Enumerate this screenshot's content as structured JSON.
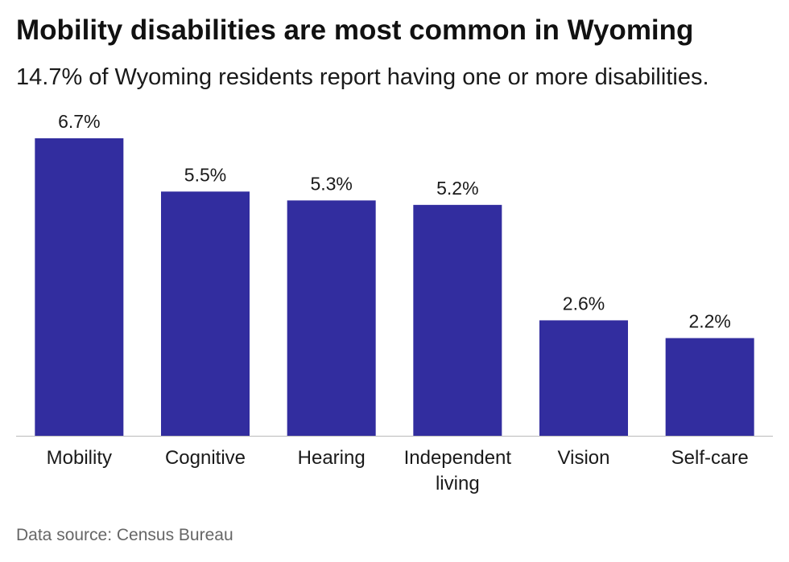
{
  "title": "Mobility disabilities are most common in Wyoming",
  "subtitle": "14.7% of Wyoming residents report having one or more disabilities.",
  "source": "Data source: Census Bureau",
  "colors": {
    "bar": "#322d9f",
    "axis": "#bbbbbb",
    "text": "#1a1a1a"
  },
  "chart_data": {
    "type": "bar",
    "categories": [
      "Mobility",
      "Cognitive",
      "Hearing",
      "Independent living",
      "Vision",
      "Self-care"
    ],
    "category_lines": [
      [
        "Mobility"
      ],
      [
        "Cognitive"
      ],
      [
        "Hearing"
      ],
      [
        "Independent",
        "living"
      ],
      [
        "Vision"
      ],
      [
        "Self-care"
      ]
    ],
    "values": [
      6.7,
      5.5,
      5.3,
      5.2,
      2.6,
      2.2
    ],
    "value_labels": [
      "6.7%",
      "5.5%",
      "5.3%",
      "5.2%",
      "2.6%",
      "2.2%"
    ],
    "unit": "%",
    "ylim": [
      0,
      6.7
    ],
    "grid": false,
    "legend": "none"
  }
}
